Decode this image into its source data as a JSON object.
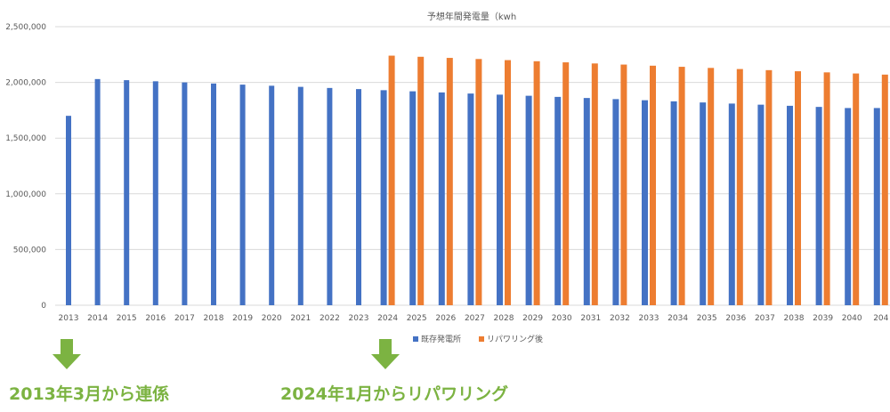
{
  "chart_data": {
    "type": "bar",
    "title": "予想年間発電量（kwh",
    "categories": [
      "2013",
      "2014",
      "2015",
      "2016",
      "2017",
      "2018",
      "2019",
      "2020",
      "2021",
      "2022",
      "2023",
      "2024",
      "2025",
      "2026",
      "2027",
      "2028",
      "2029",
      "2030",
      "2031",
      "2032",
      "2033",
      "2034",
      "2035",
      "2036",
      "2037",
      "2038",
      "2039",
      "2040",
      "204"
    ],
    "series": [
      {
        "name": "既存発電所",
        "color": "#4472c4",
        "values": [
          1700000,
          2030000,
          2020000,
          2010000,
          2000000,
          1990000,
          1980000,
          1970000,
          1960000,
          1950000,
          1940000,
          1930000,
          1920000,
          1910000,
          1900000,
          1890000,
          1880000,
          1870000,
          1860000,
          1850000,
          1840000,
          1830000,
          1820000,
          1810000,
          1800000,
          1790000,
          1780000,
          1770000,
          1770000
        ]
      },
      {
        "name": "リパワリング後",
        "color": "#ed7d31",
        "values": [
          null,
          null,
          null,
          null,
          null,
          null,
          null,
          null,
          null,
          null,
          null,
          2240000,
          2230000,
          2220000,
          2210000,
          2200000,
          2190000,
          2180000,
          2170000,
          2160000,
          2150000,
          2140000,
          2130000,
          2120000,
          2110000,
          2100000,
          2090000,
          2080000,
          2070000
        ]
      }
    ],
    "yticks": [
      "2,500,000",
      "2,000,000",
      "1,500,000",
      "1,000,000",
      "500,000",
      "0"
    ],
    "ylim": [
      0,
      2500000
    ],
    "grid": true,
    "legend": "bottom"
  },
  "annotations": {
    "left": "2013年3月から連係",
    "right": "2024年1月からリパワリング",
    "color": "#7cb342"
  }
}
